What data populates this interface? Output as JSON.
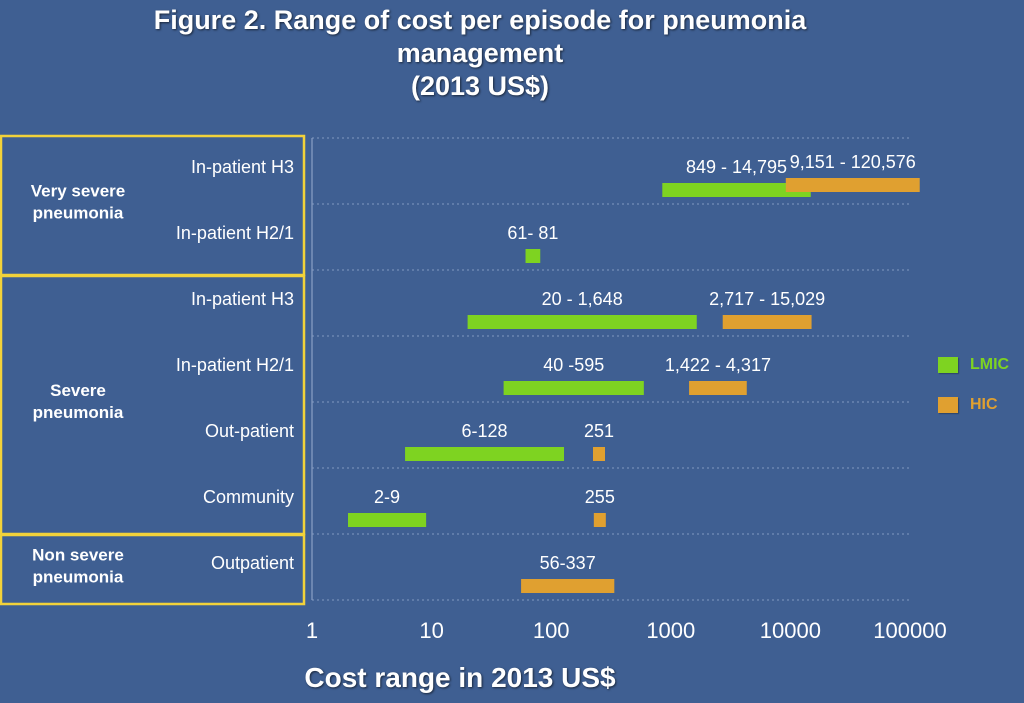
{
  "chart_data": {
    "type": "bar",
    "title_lines": [
      "Figure 2. Range of cost per episode for pneumonia",
      "management",
      "(2013 US$)"
    ],
    "xlabel": "Cost range in 2013 US$",
    "x_scale": "log",
    "xlim": [
      1,
      100000
    ],
    "x_tick_labels": [
      "1",
      "10",
      "100",
      "1000",
      "10000",
      "100000"
    ],
    "x_ticks": [
      1,
      10,
      100,
      1000,
      10000,
      100000
    ],
    "legend_position": "right",
    "series": [
      {
        "name": "LMIC",
        "color": "#7ed321"
      },
      {
        "name": "HIC",
        "color": "#e0a030"
      }
    ],
    "groups": [
      {
        "label": "Very severe pneumonia"
      },
      {
        "label": "Severe pneumonia"
      },
      {
        "label": "Non severe pneumonia"
      }
    ],
    "rows": [
      {
        "label": "In-patient H3",
        "group": 0,
        "bars": [
          {
            "series": "LMIC",
            "low": 849,
            "high": 14795,
            "label": "849 - 14,795"
          },
          {
            "series": "HIC",
            "low": 9151,
            "high": 120576,
            "label": "9,151 - 120,576"
          }
        ]
      },
      {
        "label": "In-patient H2/1",
        "group": 0,
        "bars": [
          {
            "series": "LMIC",
            "low": 61,
            "high": 81,
            "label": "61- 81"
          }
        ]
      },
      {
        "label": "In-patient H3",
        "group": 1,
        "bars": [
          {
            "series": "LMIC",
            "low": 20,
            "high": 1648,
            "label": "20 - 1,648"
          },
          {
            "series": "HIC",
            "low": 2717,
            "high": 15029,
            "label": "2,717 - 15,029"
          }
        ]
      },
      {
        "label": "In-patient H2/1",
        "group": 1,
        "bars": [
          {
            "series": "LMIC",
            "low": 40,
            "high": 595,
            "label": "40 -595"
          },
          {
            "series": "HIC",
            "low": 1422,
            "high": 4317,
            "label": "1,422 - 4,317"
          }
        ]
      },
      {
        "label": "Out-patient",
        "group": 1,
        "bars": [
          {
            "series": "LMIC",
            "low": 6,
            "high": 128,
            "label": "6-128"
          },
          {
            "series": "HIC",
            "low": 251,
            "high": 251,
            "label": "251"
          }
        ]
      },
      {
        "label": "Community",
        "group": 1,
        "bars": [
          {
            "series": "LMIC",
            "low": 2,
            "high": 9,
            "label": "2-9"
          },
          {
            "series": "HIC",
            "low": 255,
            "high": 255,
            "label": "255"
          }
        ]
      },
      {
        "label": "Outpatient",
        "group": 2,
        "bars": [
          {
            "series": "HIC",
            "low": 56,
            "high": 337,
            "label": "56-337"
          }
        ]
      }
    ]
  }
}
